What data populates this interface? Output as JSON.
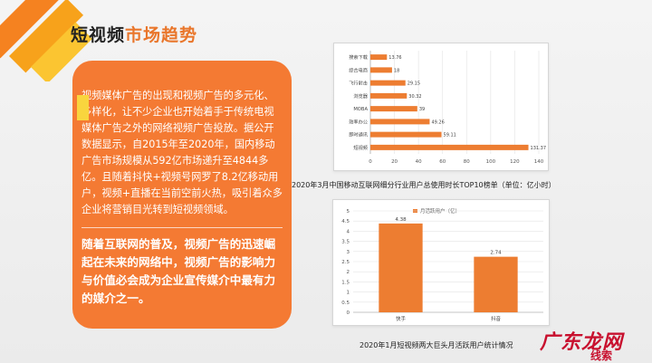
{
  "header": {
    "title_part1": "短视频",
    "title_part2": "市场趋势"
  },
  "card": {
    "paragraph1": "视频媒体广告的出现和视频广告的多元化、多样化，让不少企业也开始着手于传统电视媒体广告之外的网络视频广告投放。据公开数据显示，自2015年至2020年，国内移动广告市场规模从592亿市场递升至4844多亿。且随着抖快+视频号网罗了8.2亿移动用户，视频+直播在当前空前火热，吸引着众多企业将营销目光转到短视频领域。",
    "paragraph2": "随着互联网的普及，视频广告的迅速崛起在未来的网络中，视频广告的影响力与价值必会成为企业宣传媒介中最有力的媒介之一。"
  },
  "chart_data": [
    {
      "type": "bar",
      "orientation": "horizontal",
      "categories": [
        "搜索下载",
        "综合电商",
        "飞行射击",
        "浏览器",
        "MOBA",
        "效率办公",
        "即时通讯",
        "短视频"
      ],
      "values": [
        13.76,
        18,
        29.15,
        30.32,
        39,
        49.26,
        59.11,
        131.37
      ],
      "xlim": [
        0,
        140
      ],
      "xticks": [
        0,
        20,
        40,
        60,
        80,
        100,
        120,
        140
      ],
      "color": "#ed7d31",
      "title": "2020年3月中国移动互联网细分行业用户总使用时长TOP10榜单（单位：亿小时）"
    },
    {
      "type": "bar",
      "categories": [
        "快手",
        "抖音"
      ],
      "values": [
        4.38,
        2.74
      ],
      "ylim": [
        0,
        5
      ],
      "yticks": [
        0,
        0.5,
        1,
        1.5,
        2,
        2.5,
        3,
        3.5,
        4,
        4.5,
        5
      ],
      "ytick_labels": [
        "0",
        "0.5",
        "1",
        "1.5",
        "2",
        "2.5",
        "3",
        "3.5",
        "4",
        "4.5",
        "5"
      ],
      "legend": "月活跃用户（亿）",
      "legend_position": "top",
      "color": "#ed7d31",
      "title": "2020年1月短视频两大巨头月活跃用户统计情况"
    }
  ],
  "watermark": {
    "text": "广东龙网",
    "sub": "线索"
  }
}
